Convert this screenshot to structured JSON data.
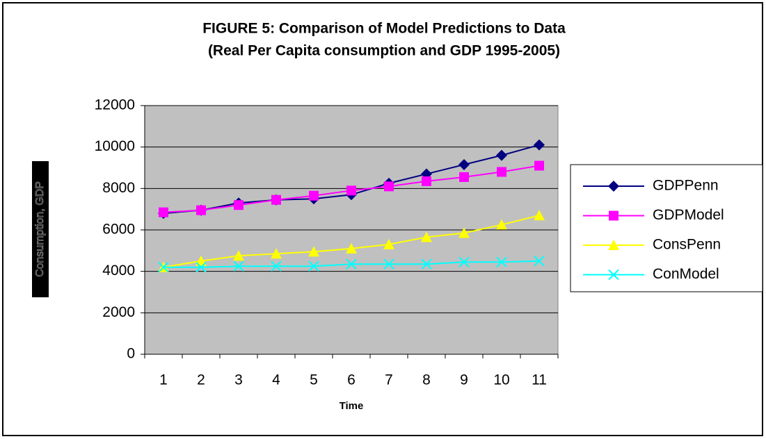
{
  "chart_data": {
    "type": "line",
    "title": [
      "FIGURE 5: Comparison of Model Predictions to Data",
      "(Real Per Capita consumption and GDP 1995-2005)"
    ],
    "x_label": "Time",
    "y_label": "Consumption, GDP",
    "categories": [
      "1",
      "2",
      "3",
      "4",
      "5",
      "6",
      "7",
      "8",
      "9",
      "10",
      "11"
    ],
    "series": [
      {
        "name": "GDPPenn",
        "color": "#000080",
        "marker": "diamond",
        "values": [
          6800,
          6950,
          7300,
          7450,
          7500,
          7700,
          8250,
          8700,
          9150,
          9600,
          10100
        ]
      },
      {
        "name": "GDPModel",
        "color": "#ff00ff",
        "marker": "square",
        "values": [
          6850,
          6950,
          7200,
          7450,
          7650,
          7900,
          8100,
          8350,
          8550,
          8800,
          9100
        ]
      },
      {
        "name": "ConsPenn",
        "color": "#ffff00",
        "marker": "triangle",
        "values": [
          4200,
          4500,
          4750,
          4850,
          4950,
          5100,
          5300,
          5650,
          5850,
          6250,
          6700
        ]
      },
      {
        "name": "ConModel",
        "color": "#00ffff",
        "marker": "x",
        "values": [
          4200,
          4200,
          4250,
          4250,
          4250,
          4350,
          4350,
          4350,
          4450,
          4450,
          4500
        ]
      }
    ],
    "ylim": [
      0,
      12000
    ],
    "yticks": [
      0,
      2000,
      4000,
      6000,
      8000,
      10000,
      12000
    ],
    "grid": true,
    "legend": "right"
  }
}
